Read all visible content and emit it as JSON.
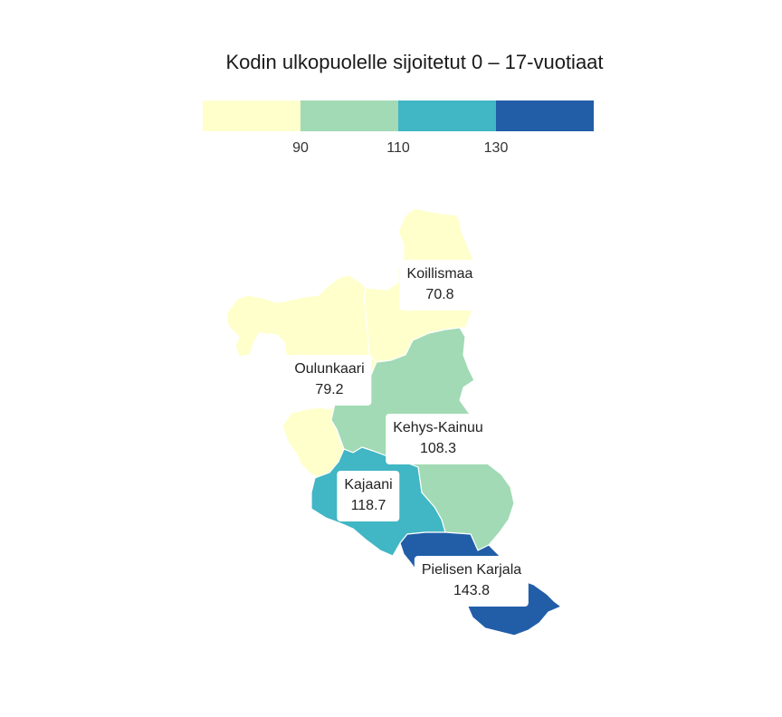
{
  "title": "Kodin ulkopuolelle sijoitetut 0 – 17-vuotiaat",
  "legend": {
    "colors": [
      "#ffffcc",
      "#a1dab4",
      "#41b6c4",
      "#225ea8"
    ],
    "ticks": [
      "90",
      "110",
      "130"
    ]
  },
  "regions": [
    {
      "name": "Koillismaa",
      "value": "70.8",
      "color": "#ffffcc"
    },
    {
      "name": "Oulunkaari",
      "value": "79.2",
      "color": "#ffffcc"
    },
    {
      "name": "Kehys-Kainuu",
      "value": "108.3",
      "color": "#a1dab4"
    },
    {
      "name": "Kajaani",
      "value": "118.7",
      "color": "#41b6c4"
    },
    {
      "name": "Pielisen Karjala",
      "value": "143.8",
      "color": "#225ea8"
    }
  ]
}
